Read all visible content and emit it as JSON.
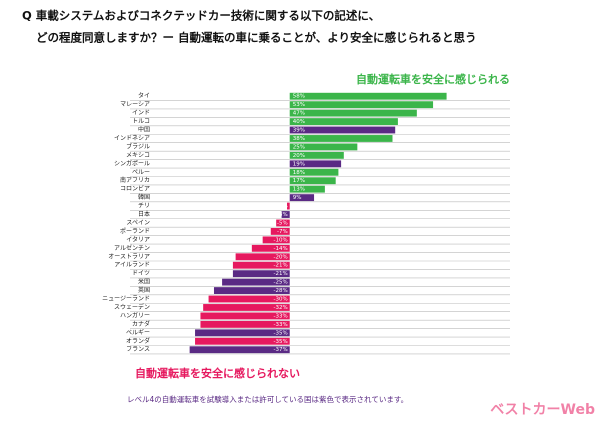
{
  "chart_data": {
    "type": "diverging-bar",
    "title_lines": [
      "Q 車載システムおよびコネクテッドカー技術に関する以下の記述に、",
      "どの程度同意しますか？ー 自動運転の車に乗ることが、より安全に感じられると思う"
    ],
    "positive_label": "自動運転車を安全に感じられる",
    "negative_label": "自動運転車を安全に感じられない",
    "footnote": "レベル4の自動運転車を試験導入または許可している国は紫色で表示されています。",
    "watermark": "ベストカーWeb",
    "categories": [
      "タイ",
      "マレーシア",
      "インド",
      "トルコ",
      "中国",
      "インドネシア",
      "ブラジル",
      "メキシコ",
      "シンガポール",
      "ペルー",
      "南アフリカ",
      "コロンビア",
      "韓国",
      "チリ",
      "日本",
      "スペイン",
      "ポーランド",
      "イタリア",
      "アルゼンチン",
      "オーストラリア",
      "アイルランド",
      "ドイツ",
      "米国",
      "英国",
      "ニュージーランド",
      "スウェーデン",
      "ハンガリー",
      "カナダ",
      "ベルギー",
      "オランダ",
      "フランス"
    ],
    "values": [
      58,
      53,
      47,
      40,
      39,
      38,
      25,
      20,
      19,
      18,
      17,
      13,
      9,
      -1,
      -3,
      -5,
      -7,
      -10,
      -14,
      -20,
      -21,
      -21,
      -25,
      -28,
      -30,
      -32,
      -33,
      -33,
      -35,
      -35,
      -37
    ],
    "value_labels": [
      "58%",
      "53%",
      "47%",
      "40%",
      "39%",
      "38%",
      "25%",
      "20%",
      "19%",
      "18%",
      "17%",
      "13%",
      "9%",
      "-1%",
      "-3%",
      "-5%",
      "-7%",
      "-10%",
      "-14%",
      "-20%",
      "-21%",
      "-21%",
      "-25%",
      "-28%",
      "-30%",
      "-32%",
      "-33%",
      "-33%",
      "-35%",
      "-35%",
      "-37%"
    ],
    "colors": [
      "#3bb54a",
      "#3bb54a",
      "#3bb54a",
      "#3bb54a",
      "#5a2a84",
      "#3bb54a",
      "#3bb54a",
      "#3bb54a",
      "#5a2a84",
      "#3bb54a",
      "#3bb54a",
      "#3bb54a",
      "#5a2a84",
      "#e6195f",
      "#5a2a84",
      "#e6195f",
      "#e6195f",
      "#e6195f",
      "#e6195f",
      "#e6195f",
      "#e6195f",
      "#5a2a84",
      "#5a2a84",
      "#5a2a84",
      "#e6195f",
      "#e6195f",
      "#e6195f",
      "#e6195f",
      "#5a2a84",
      "#e6195f",
      "#5a2a84"
    ],
    "xlim": [
      -45,
      60
    ]
  }
}
